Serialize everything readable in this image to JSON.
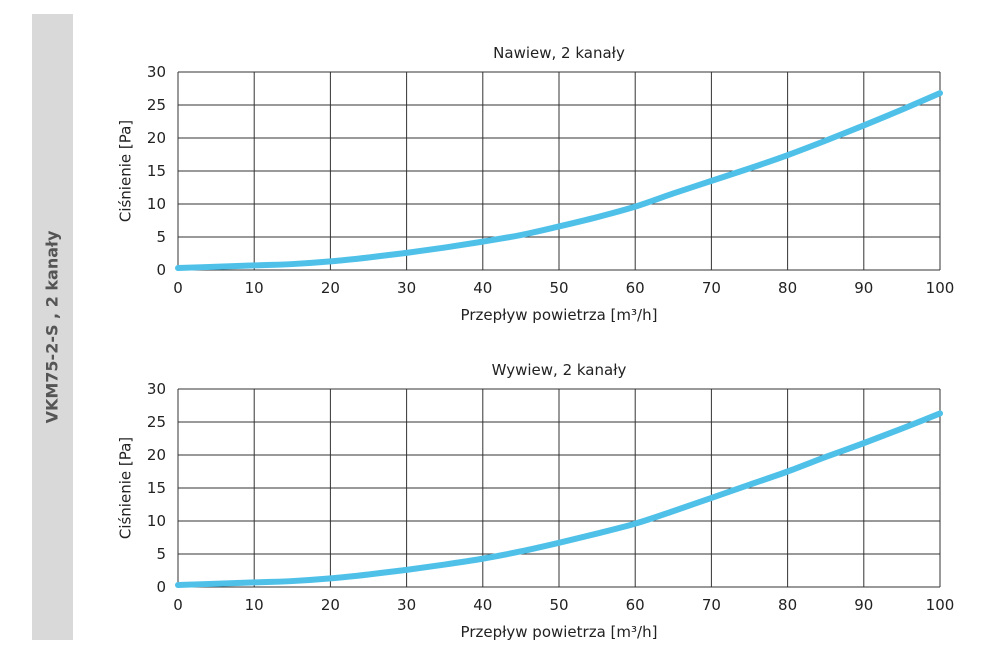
{
  "sidebar": {
    "label": "VKM75-2-S , 2 kanały"
  },
  "colors": {
    "curve": "#4fc1e9",
    "grid": "#333333",
    "sidebar": "#d9d9d9"
  },
  "chart_data": [
    {
      "type": "line",
      "title": "Nawiew, 2 kanały",
      "xlabel": "Przepływ powietrza [m³/h]",
      "ylabel": "Ciśnienie [Pa]",
      "xlim": [
        0,
        100
      ],
      "ylim": [
        0,
        30
      ],
      "xticks": [
        0,
        10,
        20,
        30,
        40,
        50,
        60,
        70,
        80,
        90,
        100
      ],
      "yticks": [
        0,
        5,
        10,
        15,
        20,
        25,
        30
      ],
      "grid": true,
      "series": [
        {
          "x": [
            0,
            5,
            10,
            15,
            20,
            25,
            30,
            35,
            40,
            45,
            50,
            55,
            60,
            65,
            70,
            75,
            80,
            85,
            90,
            95,
            100
          ],
          "y": [
            0.3,
            0.5,
            0.7,
            0.9,
            1.3,
            1.9,
            2.6,
            3.4,
            4.3,
            5.3,
            6.6,
            8.0,
            9.6,
            11.6,
            13.5,
            15.4,
            17.4,
            19.6,
            21.9,
            24.3,
            26.8
          ]
        }
      ]
    },
    {
      "type": "line",
      "title": "Wywiew, 2 kanały",
      "xlabel": "Przepływ powietrza [m³/h]",
      "ylabel": "Ciśnienie [Pa]",
      "xlim": [
        0,
        100
      ],
      "ylim": [
        0,
        30
      ],
      "xticks": [
        0,
        10,
        20,
        30,
        40,
        50,
        60,
        70,
        80,
        90,
        100
      ],
      "yticks": [
        0,
        5,
        10,
        15,
        20,
        25,
        30
      ],
      "grid": true,
      "series": [
        {
          "x": [
            0,
            5,
            10,
            15,
            20,
            25,
            30,
            35,
            40,
            45,
            50,
            55,
            60,
            65,
            70,
            75,
            80,
            85,
            90,
            95,
            100
          ],
          "y": [
            0.3,
            0.5,
            0.7,
            0.9,
            1.3,
            1.9,
            2.6,
            3.4,
            4.3,
            5.4,
            6.7,
            8.1,
            9.6,
            11.5,
            13.5,
            15.5,
            17.5,
            19.7,
            21.8,
            24.0,
            26.3
          ]
        }
      ]
    }
  ]
}
